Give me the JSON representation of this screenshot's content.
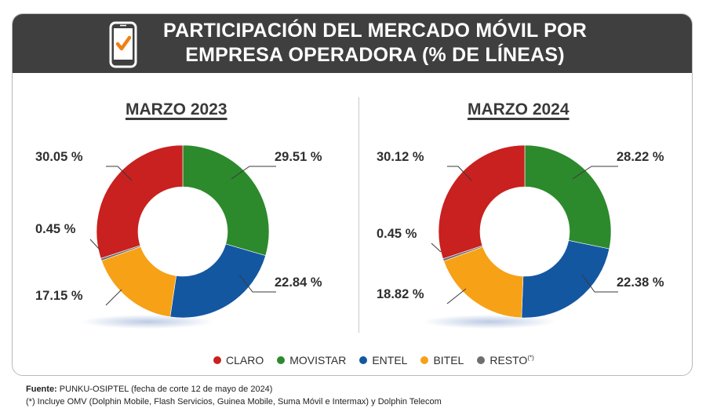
{
  "header": {
    "title_line1": "PARTICIPACIÓN DEL MERCADO MÓVIL POR",
    "title_line2": "EMPRESA OPERADORA (% DE LÍNEAS)",
    "icon": "phone-check-icon"
  },
  "colors": {
    "CLARO": "#c8211f",
    "MOVISTAR": "#2c8a2c",
    "ENTEL": "#1357a1",
    "BITEL": "#f7a116",
    "RESTO": "#6e6e6e"
  },
  "chart_data": [
    {
      "type": "pie",
      "title": "MARZO 2023",
      "categories": [
        "MOVISTAR",
        "ENTEL",
        "BITEL",
        "RESTO",
        "CLARO"
      ],
      "values": [
        29.51,
        22.84,
        17.15,
        0.45,
        30.05
      ],
      "labels": [
        "29.51 %",
        "22.84 %",
        "17.15 %",
        "0.45 %",
        "30.05 %"
      ],
      "donut": true
    },
    {
      "type": "pie",
      "title": "MARZO 2024",
      "categories": [
        "MOVISTAR",
        "ENTEL",
        "BITEL",
        "RESTO",
        "CLARO"
      ],
      "values": [
        28.22,
        22.38,
        18.82,
        0.45,
        30.12
      ],
      "labels": [
        "28.22 %",
        "22.38 %",
        "18.82 %",
        "0.45 %",
        "30.12 %"
      ],
      "donut": true
    }
  ],
  "legend": {
    "items": [
      {
        "label": "CLARO",
        "color": "#c8211f"
      },
      {
        "label": "MOVISTAR",
        "color": "#2c8a2c"
      },
      {
        "label": "ENTEL",
        "color": "#1357a1"
      },
      {
        "label": "BITEL",
        "color": "#f7a116"
      },
      {
        "label": "RESTO",
        "color": "#6e6e6e"
      }
    ],
    "resto_sup": "(*)"
  },
  "footer": {
    "source_label": "Fuente:",
    "source_text": "PUNKU-OSIPTEL (fecha de corte 12 de mayo de 2024)",
    "note": "(*) Incluye OMV (Dolphin Mobile, Flash Servicios, Guinea Mobile, Suma Móvil e Intermax) y Dolphin Telecom"
  }
}
